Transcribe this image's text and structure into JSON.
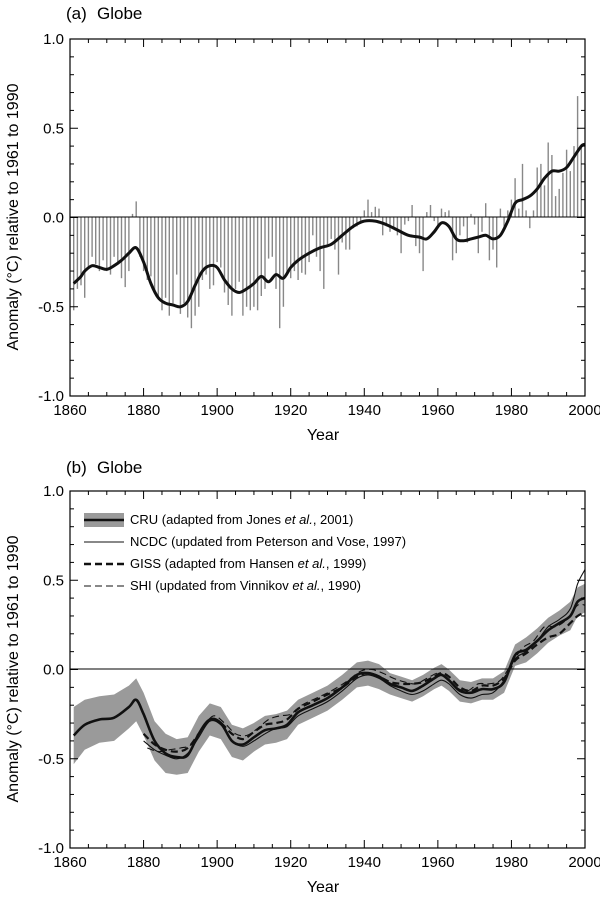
{
  "chart_data": [
    {
      "type": "bar",
      "panel_label": "(a)",
      "title": "Globe",
      "xlabel": "Year",
      "ylabel": "Anomaly (°C) relative to 1961 to 1990",
      "xlim": [
        1860,
        2000
      ],
      "ylim": [
        -1.0,
        1.0
      ],
      "xticks": [
        "1860",
        "1880",
        "1900",
        "1920",
        "1940",
        "1960",
        "1980",
        "2000"
      ],
      "yticks": [
        "1.0",
        "0.5",
        "0.0",
        "-0.5",
        "-1.0"
      ],
      "colors": {
        "bars": "#888888",
        "smooth": "#111111"
      },
      "series": [
        {
          "kind": "annual_bars",
          "x": [
            1861,
            1862,
            1863,
            1864,
            1865,
            1866,
            1867,
            1868,
            1869,
            1870,
            1871,
            1872,
            1873,
            1874,
            1875,
            1876,
            1877,
            1878,
            1879,
            1880,
            1881,
            1882,
            1883,
            1884,
            1885,
            1886,
            1887,
            1888,
            1889,
            1890,
            1891,
            1892,
            1893,
            1894,
            1895,
            1896,
            1897,
            1898,
            1899,
            1900,
            1901,
            1902,
            1903,
            1904,
            1905,
            1906,
            1907,
            1908,
            1909,
            1910,
            1911,
            1912,
            1913,
            1914,
            1915,
            1916,
            1917,
            1918,
            1919,
            1920,
            1921,
            1922,
            1923,
            1924,
            1925,
            1926,
            1927,
            1928,
            1929,
            1930,
            1931,
            1932,
            1933,
            1934,
            1935,
            1936,
            1937,
            1938,
            1939,
            1940,
            1941,
            1942,
            1943,
            1944,
            1945,
            1946,
            1947,
            1948,
            1949,
            1950,
            1951,
            1952,
            1953,
            1954,
            1955,
            1956,
            1957,
            1958,
            1959,
            1960,
            1961,
            1962,
            1963,
            1964,
            1965,
            1966,
            1967,
            1968,
            1969,
            1970,
            1971,
            1972,
            1973,
            1974,
            1975,
            1976,
            1977,
            1978,
            1979,
            1980,
            1981,
            1982,
            1983,
            1984,
            1985,
            1986,
            1987,
            1988,
            1989,
            1990,
            1991,
            1992,
            1993,
            1994,
            1995,
            1996,
            1997,
            1998,
            1999,
            2000
          ],
          "values": [
            -0.52,
            -0.4,
            -0.38,
            -0.45,
            -0.28,
            -0.22,
            -0.26,
            -0.3,
            -0.24,
            -0.3,
            -0.32,
            -0.22,
            -0.26,
            -0.34,
            -0.39,
            -0.3,
            0.02,
            0.09,
            -0.22,
            -0.3,
            -0.35,
            -0.33,
            -0.41,
            -0.46,
            -0.52,
            -0.45,
            -0.55,
            -0.48,
            -0.32,
            -0.54,
            -0.48,
            -0.56,
            -0.62,
            -0.55,
            -0.5,
            -0.35,
            -0.32,
            -0.4,
            -0.38,
            -0.25,
            -0.28,
            -0.42,
            -0.49,
            -0.55,
            -0.4,
            -0.36,
            -0.55,
            -0.5,
            -0.52,
            -0.5,
            -0.52,
            -0.44,
            -0.4,
            -0.23,
            -0.22,
            -0.4,
            -0.62,
            -0.5,
            -0.32,
            -0.34,
            -0.3,
            -0.35,
            -0.31,
            -0.32,
            -0.25,
            -0.1,
            -0.22,
            -0.3,
            -0.4,
            -0.15,
            -0.12,
            -0.18,
            -0.32,
            -0.14,
            -0.18,
            -0.18,
            -0.06,
            -0.05,
            -0.02,
            0.04,
            0.1,
            0.03,
            0.06,
            0.05,
            -0.1,
            -0.05,
            -0.08,
            -0.06,
            -0.1,
            -0.2,
            -0.04,
            -0.02,
            0.07,
            -0.16,
            -0.2,
            -0.3,
            0.03,
            0.07,
            -0.02,
            -0.05,
            0.05,
            0.03,
            0.04,
            -0.24,
            -0.2,
            -0.1,
            -0.05,
            -0.14,
            0.02,
            -0.04,
            -0.2,
            -0.08,
            0.08,
            -0.24,
            -0.18,
            -0.28,
            0.05,
            -0.05,
            0.04,
            0.1,
            0.22,
            0.05,
            0.3,
            0.04,
            -0.06,
            0.04,
            0.28,
            0.3,
            0.18,
            0.42,
            0.35,
            0.12,
            0.16,
            0.25,
            0.38,
            0.26,
            0.4,
            0.68,
            0.4,
            0.3
          ]
        },
        {
          "kind": "smoothed_line",
          "x": [
            1861,
            1862,
            1863,
            1864,
            1866,
            1868,
            1870,
            1872,
            1874,
            1876,
            1878,
            1880,
            1882,
            1884,
            1886,
            1888,
            1890,
            1892,
            1894,
            1896,
            1898,
            1900,
            1902,
            1904,
            1906,
            1908,
            1910,
            1912,
            1914,
            1916,
            1918,
            1920,
            1922,
            1925,
            1928,
            1931,
            1934,
            1937,
            1940,
            1943,
            1946,
            1949,
            1952,
            1955,
            1957,
            1959,
            1961,
            1963,
            1965,
            1967,
            1969,
            1971,
            1973,
            1975,
            1977,
            1979,
            1981,
            1983,
            1985,
            1987,
            1989,
            1991,
            1993,
            1995,
            1997,
            1999,
            2000
          ],
          "values": [
            -0.37,
            -0.35,
            -0.33,
            -0.3,
            -0.27,
            -0.28,
            -0.29,
            -0.27,
            -0.24,
            -0.2,
            -0.17,
            -0.25,
            -0.37,
            -0.45,
            -0.48,
            -0.49,
            -0.5,
            -0.47,
            -0.38,
            -0.3,
            -0.27,
            -0.28,
            -0.35,
            -0.4,
            -0.42,
            -0.4,
            -0.37,
            -0.33,
            -0.36,
            -0.32,
            -0.34,
            -0.28,
            -0.24,
            -0.2,
            -0.17,
            -0.15,
            -0.1,
            -0.05,
            -0.02,
            -0.02,
            -0.04,
            -0.07,
            -0.1,
            -0.11,
            -0.12,
            -0.08,
            -0.03,
            -0.05,
            -0.12,
            -0.13,
            -0.12,
            -0.11,
            -0.1,
            -0.12,
            -0.1,
            -0.02,
            0.08,
            0.1,
            0.12,
            0.16,
            0.22,
            0.26,
            0.26,
            0.28,
            0.34,
            0.4,
            0.41
          ]
        }
      ]
    },
    {
      "type": "line",
      "panel_label": "(b)",
      "title": "Globe",
      "xlabel": "Year",
      "ylabel": "Anomaly (°C) relative to 1961 to 1990",
      "xlim": [
        1860,
        2000
      ],
      "ylim": [
        -1.0,
        1.0
      ],
      "xticks": [
        "1860",
        "1880",
        "1900",
        "1920",
        "1940",
        "1960",
        "1980",
        "2000"
      ],
      "yticks": [
        "1.0",
        "0.5",
        "0.0",
        "-0.5",
        "-1.0"
      ],
      "colors": {
        "band": "#9a9a9a",
        "lines": "#111111"
      },
      "legend": {
        "position": "top-left",
        "entries": [
          {
            "pre": "CRU (adapted from Jones ",
            "ital": "et al.",
            "post": ", 2001)",
            "style": "band"
          },
          {
            "pre": "NCDC (updated from Peterson and Vose, 1997)",
            "ital": "",
            "post": "",
            "style": "thin"
          },
          {
            "pre": "GISS (adapted from Hansen ",
            "ital": "et al.",
            "post": ", 1999)",
            "style": "dashed-bold"
          },
          {
            "pre": "SHI (updated from Vinnikov ",
            "ital": "et al.",
            "post": ", 1990)",
            "style": "dashed-thin"
          }
        ]
      },
      "series": [
        {
          "name": "CRU",
          "x": [
            1861,
            1864,
            1868,
            1872,
            1876,
            1878,
            1880,
            1883,
            1886,
            1889,
            1892,
            1895,
            1898,
            1901,
            1904,
            1907,
            1910,
            1913,
            1916,
            1919,
            1922,
            1926,
            1930,
            1934,
            1938,
            1941,
            1944,
            1947,
            1950,
            1953,
            1956,
            1959,
            1961,
            1963,
            1966,
            1969,
            1972,
            1975,
            1978,
            1981,
            1984,
            1987,
            1990,
            1993,
            1996,
            1998,
            2000
          ],
          "values": [
            -0.37,
            -0.31,
            -0.28,
            -0.27,
            -0.21,
            -0.17,
            -0.25,
            -0.4,
            -0.47,
            -0.49,
            -0.48,
            -0.36,
            -0.28,
            -0.3,
            -0.4,
            -0.42,
            -0.38,
            -0.34,
            -0.33,
            -0.31,
            -0.24,
            -0.2,
            -0.16,
            -0.1,
            -0.03,
            -0.02,
            -0.04,
            -0.08,
            -0.1,
            -0.12,
            -0.09,
            -0.05,
            -0.03,
            -0.06,
            -0.12,
            -0.13,
            -0.11,
            -0.11,
            -0.07,
            0.08,
            0.11,
            0.16,
            0.22,
            0.26,
            0.3,
            0.38,
            0.4
          ],
          "uncertainty": [
            0.16,
            0.14,
            0.13,
            0.13,
            0.12,
            0.12,
            0.12,
            0.11,
            0.11,
            0.1,
            0.1,
            0.1,
            0.09,
            0.09,
            0.09,
            0.09,
            0.08,
            0.08,
            0.08,
            0.08,
            0.07,
            0.07,
            0.07,
            0.07,
            0.07,
            0.07,
            0.07,
            0.06,
            0.06,
            0.06,
            0.06,
            0.06,
            0.06,
            0.06,
            0.06,
            0.06,
            0.06,
            0.06,
            0.06,
            0.06,
            0.07,
            0.07,
            0.07,
            0.07,
            0.08,
            0.08,
            0.08
          ]
        },
        {
          "name": "NCDC",
          "x": [
            1880,
            1883,
            1886,
            1889,
            1892,
            1895,
            1898,
            1901,
            1904,
            1907,
            1910,
            1913,
            1916,
            1919,
            1922,
            1926,
            1930,
            1934,
            1938,
            1941,
            1944,
            1947,
            1950,
            1953,
            1956,
            1959,
            1961,
            1963,
            1966,
            1969,
            1972,
            1975,
            1978,
            1981,
            1984,
            1987,
            1990,
            1993,
            1996,
            1998,
            2000
          ],
          "values": [
            -0.4,
            -0.45,
            -0.48,
            -0.5,
            -0.47,
            -0.38,
            -0.29,
            -0.31,
            -0.4,
            -0.43,
            -0.4,
            -0.36,
            -0.33,
            -0.32,
            -0.26,
            -0.22,
            -0.18,
            -0.12,
            -0.05,
            -0.03,
            -0.05,
            -0.09,
            -0.12,
            -0.14,
            -0.12,
            -0.08,
            -0.06,
            -0.08,
            -0.14,
            -0.16,
            -0.14,
            -0.13,
            -0.06,
            0.06,
            0.1,
            0.16,
            0.24,
            0.28,
            0.34,
            0.48,
            0.56
          ]
        },
        {
          "name": "GISS",
          "x": [
            1880,
            1883,
            1886,
            1889,
            1892,
            1895,
            1898,
            1901,
            1904,
            1907,
            1910,
            1913,
            1916,
            1919,
            1922,
            1926,
            1930,
            1934,
            1938,
            1941,
            1944,
            1947,
            1950,
            1953,
            1956,
            1959,
            1961,
            1963,
            1966,
            1969,
            1972,
            1975,
            1978,
            1981,
            1984,
            1987,
            1990,
            1993,
            1996,
            1998,
            2000
          ],
          "values": [
            -0.36,
            -0.42,
            -0.45,
            -0.46,
            -0.44,
            -0.36,
            -0.28,
            -0.3,
            -0.36,
            -0.39,
            -0.35,
            -0.31,
            -0.3,
            -0.28,
            -0.22,
            -0.18,
            -0.14,
            -0.1,
            -0.04,
            -0.02,
            -0.04,
            -0.07,
            -0.08,
            -0.08,
            -0.07,
            -0.04,
            -0.02,
            -0.04,
            -0.1,
            -0.12,
            -0.09,
            -0.09,
            -0.05,
            0.05,
            0.09,
            0.14,
            0.18,
            0.2,
            0.26,
            0.3,
            0.32
          ]
        },
        {
          "name": "SHI",
          "x": [
            1881,
            1884,
            1887,
            1890,
            1893,
            1896,
            1899,
            1902,
            1905,
            1908,
            1911,
            1914,
            1917,
            1920,
            1923,
            1927,
            1931,
            1935,
            1939,
            1942,
            1945,
            1948,
            1951,
            1954,
            1957,
            1960,
            1962,
            1965,
            1968,
            1971,
            1974,
            1977,
            1980,
            1983,
            1986,
            1989,
            1992,
            1995,
            1998,
            2000
          ],
          "values": [
            -0.44,
            -0.46,
            -0.45,
            -0.44,
            -0.42,
            -0.33,
            -0.26,
            -0.3,
            -0.36,
            -0.37,
            -0.33,
            -0.28,
            -0.26,
            -0.25,
            -0.2,
            -0.16,
            -0.12,
            -0.07,
            -0.01,
            0.0,
            -0.02,
            -0.05,
            -0.07,
            -0.08,
            -0.05,
            -0.02,
            -0.04,
            -0.1,
            -0.12,
            -0.08,
            -0.08,
            -0.06,
            0.03,
            0.12,
            0.16,
            0.24,
            0.24,
            0.28,
            0.36,
            0.36
          ]
        }
      ]
    }
  ]
}
